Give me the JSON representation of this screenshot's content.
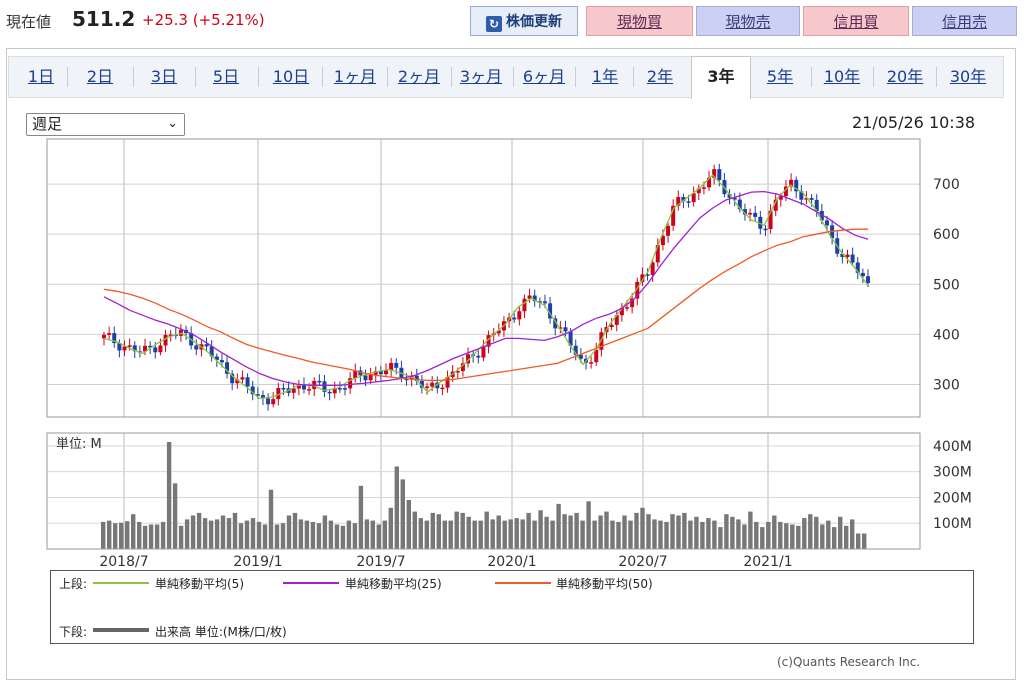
{
  "header": {
    "price_label": "現在値",
    "price_value": "511.2",
    "price_change": "+25.3 (+5.21%)",
    "refresh_label": "株価更新",
    "buttons": [
      "現物買",
      "現物売",
      "信用買",
      "信用売"
    ]
  },
  "tabs": [
    "1日",
    "2日",
    "3日",
    "5日",
    "10日",
    "1ヶ月",
    "2ヶ月",
    "3ヶ月",
    "6ヶ月",
    "1年",
    "2年",
    "3年",
    "5年",
    "10年",
    "20年",
    "30年"
  ],
  "active_tab": "3年",
  "period_select": "週足",
  "timestamp": "21/05/26 10:38",
  "colors": {
    "up": "#d0021b",
    "down": "#1c3fa8",
    "ma5": "#8bc43f",
    "ma25": "#a020d8",
    "ma50": "#ef5a28",
    "volume": "#777777"
  },
  "legend": {
    "upper_label": "上段:",
    "lower_label": "下段:",
    "ma5": "単純移動平均(5)",
    "ma25": "単純移動平均(25)",
    "ma50": "単純移動平均(50)",
    "volume": "出来高 単位:(M株/口/枚)"
  },
  "copyright": "(c)Quants Research Inc.",
  "chart_data": [
    {
      "type": "candlestick",
      "x_tick_labels": [
        "2018/7",
        "2019/1",
        "2019/7",
        "2020/1",
        "2020/7",
        "2021/1"
      ],
      "y_ticks": [
        300,
        400,
        500,
        600,
        700
      ],
      "ylim": [
        235,
        790
      ],
      "grid": true,
      "series": [
        {
          "name": "単純移動平均(5)",
          "values": [
            392,
            385,
            372,
            362,
            380,
            395,
            402,
            385,
            365,
            340,
            315,
            295,
            272,
            275,
            285,
            298,
            300,
            288,
            292,
            308,
            318,
            325,
            330,
            322,
            312,
            285,
            305,
            322,
            345,
            372,
            398,
            420,
            455,
            472,
            458,
            420,
            378,
            340,
            370,
            418,
            452,
            485,
            525,
            592,
            652,
            672,
            692,
            718,
            690,
            655,
            628,
            618,
            672,
            698,
            682,
            648,
            600,
            562,
            532,
            498
          ]
        },
        {
          "name": "単純移動平均(25)",
          "values": [
            475,
            462,
            448,
            438,
            428,
            420,
            410,
            398,
            382,
            365,
            350,
            335,
            322,
            312,
            305,
            300,
            298,
            298,
            298,
            300,
            302,
            305,
            308,
            312,
            318,
            328,
            340,
            352,
            362,
            372,
            382,
            392,
            392,
            390,
            388,
            395,
            405,
            420,
            432,
            440,
            452,
            472,
            502,
            538,
            572,
            602,
            632,
            652,
            668,
            676,
            684,
            685,
            680,
            670,
            660,
            645,
            630,
            612,
            598,
            590
          ]
        },
        {
          "name": "単純移動平均(50)",
          "values": [
            490,
            486,
            480,
            472,
            462,
            450,
            440,
            428,
            415,
            405,
            392,
            380,
            372,
            365,
            358,
            352,
            345,
            340,
            335,
            330,
            323,
            318,
            315,
            312,
            310,
            308,
            308,
            310,
            314,
            318,
            322,
            326,
            330,
            334,
            338,
            342,
            352,
            362,
            372,
            382,
            392,
            402,
            412,
            432,
            452,
            472,
            492,
            510,
            526,
            540,
            555,
            567,
            578,
            585,
            595,
            600,
            605,
            608,
            610,
            610
          ]
        }
      ]
    },
    {
      "type": "bar",
      "title": "単位: M",
      "y_tick_labels": [
        "100M",
        "200M",
        "300M",
        "400M"
      ],
      "ylim": [
        0,
        450
      ],
      "values": [
        105,
        110,
        100,
        102,
        108,
        135,
        105,
        90,
        95,
        95,
        105,
        415,
        255,
        90,
        115,
        130,
        140,
        120,
        110,
        115,
        130,
        120,
        140,
        100,
        110,
        120,
        105,
        95,
        230,
        95,
        100,
        130,
        140,
        115,
        110,
        105,
        100,
        130,
        110,
        95,
        90,
        110,
        100,
        245,
        115,
        110,
        95,
        110,
        160,
        320,
        270,
        190,
        145,
        120,
        110,
        140,
        135,
        110,
        110,
        145,
        140,
        125,
        110,
        110,
        145,
        115,
        130,
        110,
        115,
        120,
        115,
        140,
        110,
        150,
        125,
        110,
        175,
        135,
        130,
        140,
        110,
        185,
        110,
        130,
        145,
        110,
        105,
        130,
        110,
        140,
        160,
        135,
        115,
        110,
        105,
        135,
        130,
        140,
        110,
        125,
        105,
        120,
        110,
        85,
        135,
        125,
        115,
        95,
        145,
        105,
        85,
        105,
        130,
        105,
        100,
        95,
        90,
        120,
        135,
        125,
        95,
        110,
        85,
        125,
        90,
        115,
        60,
        60
      ]
    }
  ]
}
